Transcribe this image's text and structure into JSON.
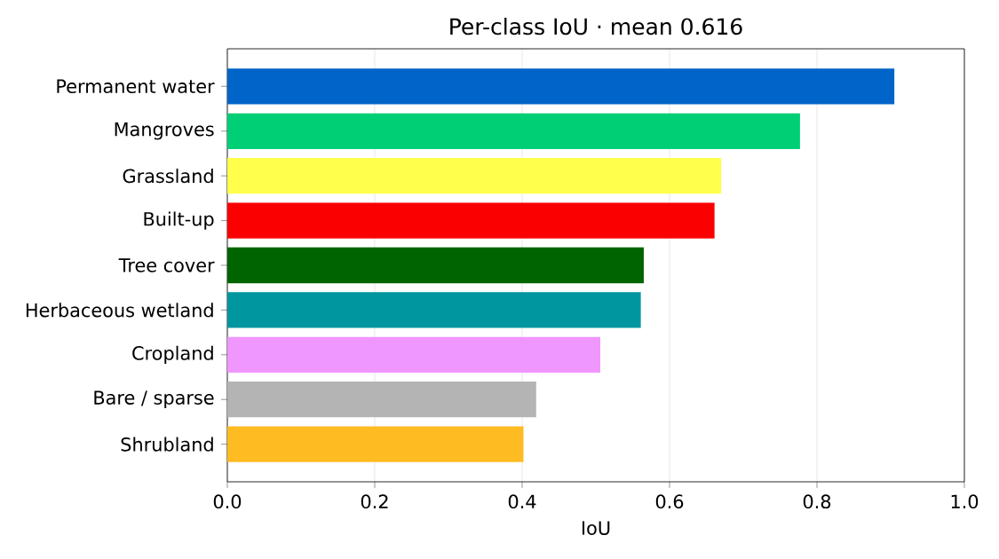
{
  "chart_data": {
    "type": "bar",
    "orientation": "horizontal",
    "title": "Per-class IoU · mean 0.616",
    "xlabel": "IoU",
    "categories": [
      "Permanent water",
      "Mangroves",
      "Grassland",
      "Built-up",
      "Tree cover",
      "Herbaceous wetland",
      "Cropland",
      "Bare / sparse",
      "Shrubland"
    ],
    "values": [
      0.905,
      0.777,
      0.67,
      0.661,
      0.565,
      0.561,
      0.506,
      0.419,
      0.402
    ],
    "colors": [
      "#0064c8",
      "#00cf75",
      "#ffff4c",
      "#fa0000",
      "#006400",
      "#0096a0",
      "#f096ff",
      "#b4b4b4",
      "#ffbb22"
    ],
    "xlim": [
      0,
      1
    ],
    "xticks": [
      {
        "value": 0,
        "label": "0.0"
      },
      0.2,
      0.4,
      0.6,
      0.8,
      {
        "value": 1,
        "label": "1.0"
      }
    ],
    "grid": "x"
  }
}
